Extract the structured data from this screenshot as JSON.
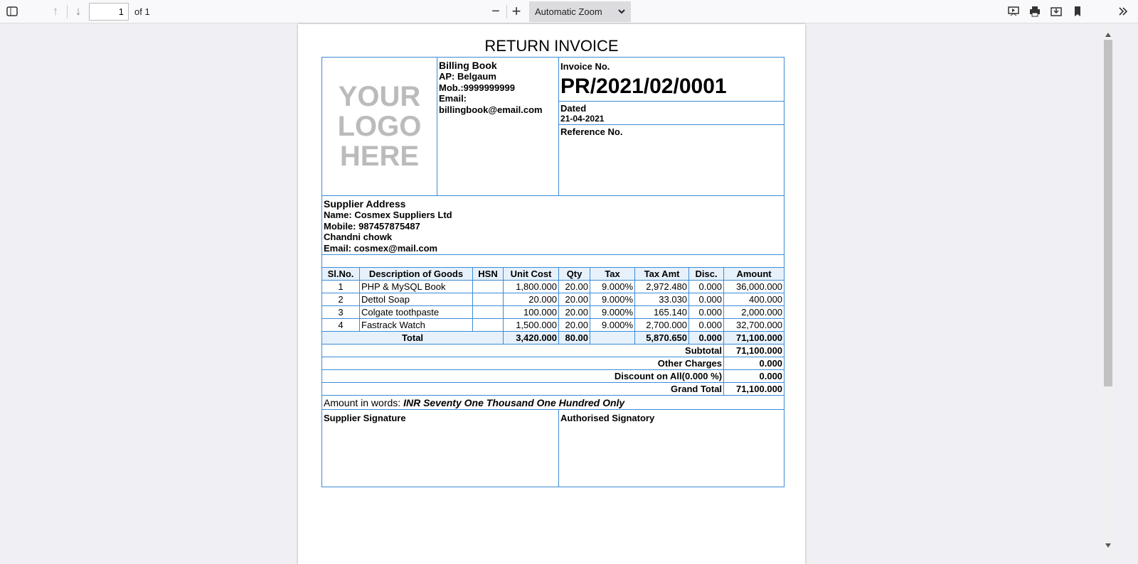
{
  "toolbar": {
    "page": "1",
    "of": "of 1",
    "zoom": "Automatic Zoom",
    "icons": [
      "sidebar-toggle-icon",
      "arrow-up-icon",
      "arrow-down-icon",
      "minus-icon",
      "plus-icon",
      "presentation-icon",
      "print-icon",
      "save-icon",
      "bookmark-icon",
      "double-chevron-right-icon"
    ]
  },
  "invoice": {
    "title": "RETURN INVOICE",
    "logo": [
      "YOUR",
      "LOGO",
      "HERE"
    ],
    "company": {
      "name": "Billing Book",
      "address": "AP: Belgaum",
      "mobile": "Mob.:9999999999",
      "email_label": "Email:",
      "email": "billingbook@email.com"
    },
    "invoice_label": "Invoice No.",
    "invoice_no": "PR/2021/02/0001",
    "dated_label": "Dated",
    "date": "21-04-2021",
    "reference_label": "Reference No.",
    "supplier": {
      "label": "Supplier Address",
      "name": "Name: Cosmex Suppliers Ltd",
      "mobile": "Mobile: 987457875487",
      "address": "Chandni chowk",
      "email": "Email: cosmex@mail.com"
    },
    "columns": [
      "Sl.No.",
      "Description of Goods",
      "HSN",
      "Unit Cost",
      "Qty",
      "Tax",
      "Tax Amt",
      "Disc.",
      "Amount"
    ],
    "rows": [
      [
        "1",
        "PHP & MySQL Book",
        "",
        "1,800.000",
        "20.00",
        "9.000%",
        "2,972.480",
        "0.000",
        "36,000.000"
      ],
      [
        "2",
        "Dettol Soap",
        "",
        "20.000",
        "20.00",
        "9.000%",
        "33.030",
        "0.000",
        "400.000"
      ],
      [
        "3",
        "Colgate toothpaste",
        "",
        "100.000",
        "20.00",
        "9.000%",
        "165.140",
        "0.000",
        "2,000.000"
      ],
      [
        "4",
        "Fastrack Watch",
        "",
        "1,500.000",
        "20.00",
        "9.000%",
        "2,700.000",
        "0.000",
        "32,700.000"
      ]
    ],
    "total": {
      "label": "Total",
      "unit_cost": "3,420.000",
      "qty": "80.00",
      "tax_amt": "5,870.650",
      "disc": "0.000",
      "amount": "71,100.000"
    },
    "summary": [
      {
        "label": "Subtotal",
        "value": "71,100.000"
      },
      {
        "label": "Other Charges",
        "value": "0.000"
      },
      {
        "label": "Discount on All(0.000 %)",
        "value": "0.000"
      },
      {
        "label": "Grand Total",
        "value": "71,100.000"
      }
    ],
    "words_label": "Amount in words:",
    "words": "INR Seventy One Thousand One Hundred Only",
    "supplier_signature": "Supplier Signature",
    "authorised_signatory": "Authorised Signatory",
    "border_color": "#3c8bd6"
  }
}
